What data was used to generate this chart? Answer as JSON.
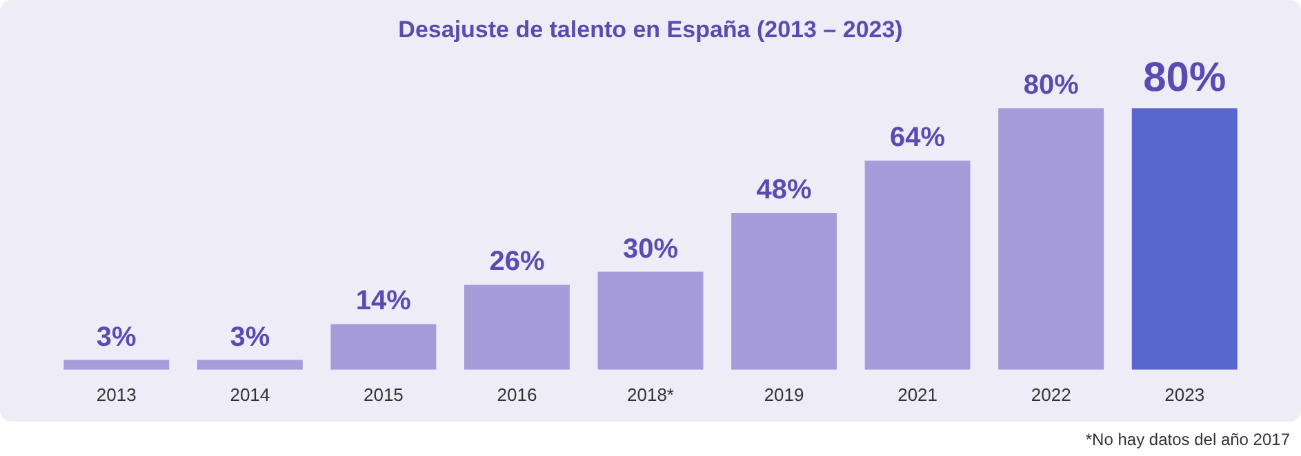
{
  "chart_data": {
    "type": "bar",
    "title": "Desajuste de talento en España (2013 – 2023)",
    "categories": [
      "2013",
      "2014",
      "2015",
      "2016",
      "2018*",
      "2019",
      "2021",
      "2022",
      "2023"
    ],
    "values": [
      3,
      3,
      14,
      26,
      30,
      48,
      64,
      80,
      80
    ],
    "colors": [
      "#a69cd9",
      "#a69cd9",
      "#a69cd9",
      "#a69cd9",
      "#a69cd9",
      "#a69cd9",
      "#a69cd9",
      "#a69cd9",
      "#5a66cf"
    ],
    "value_labels": [
      "3%",
      "3%",
      "14%",
      "26%",
      "30%",
      "48%",
      "64%",
      "80%",
      "80%"
    ],
    "grid": false,
    "legend": false,
    "annotations": [
      "*No hay datos del año 2017"
    ]
  }
}
